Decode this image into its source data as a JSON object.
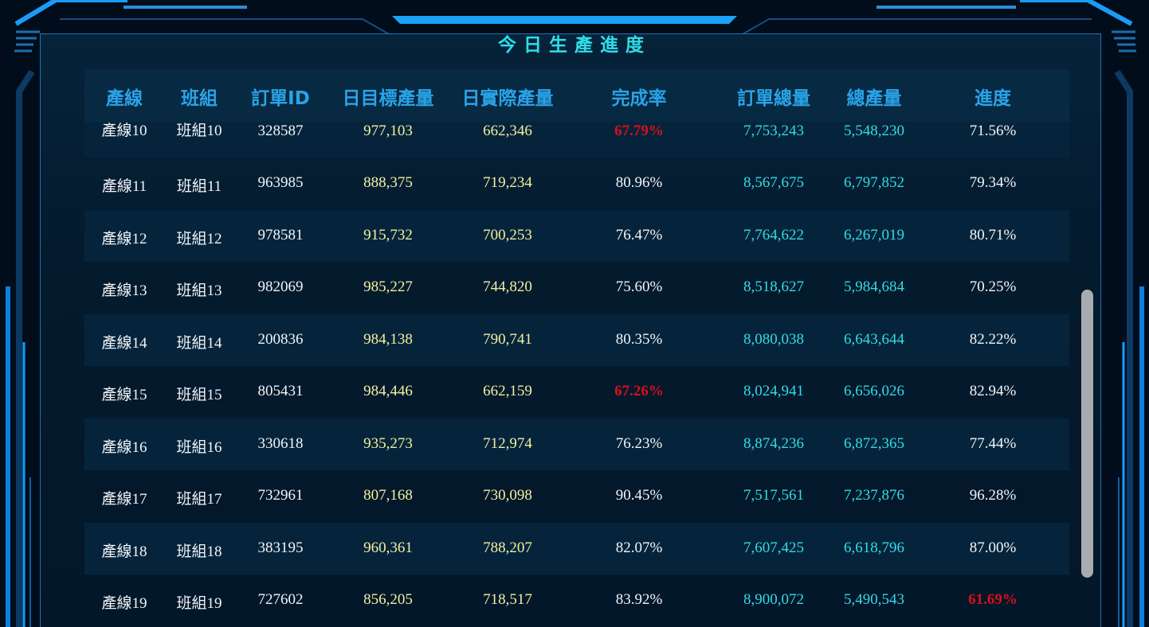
{
  "title": "今日生產進度",
  "columns": [
    "產線",
    "班組",
    "訂單ID",
    "日目標產量",
    "日實際產量",
    "完成率",
    "訂單總量",
    "總產量",
    "進度"
  ],
  "colors": {
    "accent": "#2fdde8",
    "header": "#2aa3e8",
    "warning": "#d80f1a",
    "yellow": "#f3f0a0"
  },
  "rows": [
    {
      "line": "產線10",
      "team": "班組10",
      "order_id": "328587",
      "daily_target": "977,103",
      "daily_actual": "662,346",
      "completion": "67.79%",
      "completion_low": true,
      "order_total": "7,753,243",
      "total_output": "5,548,230",
      "progress": "71.56%",
      "progress_low": false
    },
    {
      "line": "產線11",
      "team": "班組11",
      "order_id": "963985",
      "daily_target": "888,375",
      "daily_actual": "719,234",
      "completion": "80.96%",
      "completion_low": false,
      "order_total": "8,567,675",
      "total_output": "6,797,852",
      "progress": "79.34%",
      "progress_low": false
    },
    {
      "line": "產線12",
      "team": "班組12",
      "order_id": "978581",
      "daily_target": "915,732",
      "daily_actual": "700,253",
      "completion": "76.47%",
      "completion_low": false,
      "order_total": "7,764,622",
      "total_output": "6,267,019",
      "progress": "80.71%",
      "progress_low": false
    },
    {
      "line": "產線13",
      "team": "班組13",
      "order_id": "982069",
      "daily_target": "985,227",
      "daily_actual": "744,820",
      "completion": "75.60%",
      "completion_low": false,
      "order_total": "8,518,627",
      "total_output": "5,984,684",
      "progress": "70.25%",
      "progress_low": false
    },
    {
      "line": "產線14",
      "team": "班組14",
      "order_id": "200836",
      "daily_target": "984,138",
      "daily_actual": "790,741",
      "completion": "80.35%",
      "completion_low": false,
      "order_total": "8,080,038",
      "total_output": "6,643,644",
      "progress": "82.22%",
      "progress_low": false
    },
    {
      "line": "產線15",
      "team": "班組15",
      "order_id": "805431",
      "daily_target": "984,446",
      "daily_actual": "662,159",
      "completion": "67.26%",
      "completion_low": true,
      "order_total": "8,024,941",
      "total_output": "6,656,026",
      "progress": "82.94%",
      "progress_low": false
    },
    {
      "line": "產線16",
      "team": "班組16",
      "order_id": "330618",
      "daily_target": "935,273",
      "daily_actual": "712,974",
      "completion": "76.23%",
      "completion_low": false,
      "order_total": "8,874,236",
      "total_output": "6,872,365",
      "progress": "77.44%",
      "progress_low": false
    },
    {
      "line": "產線17",
      "team": "班組17",
      "order_id": "732961",
      "daily_target": "807,168",
      "daily_actual": "730,098",
      "completion": "90.45%",
      "completion_low": false,
      "order_total": "7,517,561",
      "total_output": "7,237,876",
      "progress": "96.28%",
      "progress_low": false
    },
    {
      "line": "產線18",
      "team": "班組18",
      "order_id": "383195",
      "daily_target": "960,361",
      "daily_actual": "788,207",
      "completion": "82.07%",
      "completion_low": false,
      "order_total": "7,607,425",
      "total_output": "6,618,796",
      "progress": "87.00%",
      "progress_low": false
    },
    {
      "line": "產線19",
      "team": "班組19",
      "order_id": "727602",
      "daily_target": "856,205",
      "daily_actual": "718,517",
      "completion": "83.92%",
      "completion_low": false,
      "order_total": "8,900,072",
      "total_output": "5,490,543",
      "progress": "61.69%",
      "progress_low": true
    }
  ]
}
